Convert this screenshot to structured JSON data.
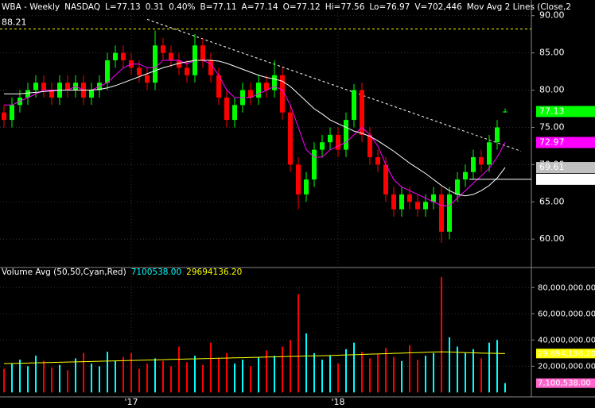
{
  "chart_data": [
    {
      "type": "candlestick",
      "header": [
        "WBA - Weekly",
        "NASDAQ",
        "L=77.13",
        "0.31",
        "0.40%",
        "B=77.11",
        "A=77.14",
        "O=77.12",
        "Hi=77.56",
        "Lo=76.97",
        "V=702,446",
        "Mov Avg 2 Lines (Close,2"
      ],
      "categories": [
        null,
        null,
        null,
        null,
        null,
        null,
        null,
        null,
        null,
        null,
        null,
        null,
        null,
        null,
        null,
        null,
        "'17",
        null,
        null,
        null,
        null,
        null,
        null,
        null,
        null,
        null,
        null,
        null,
        null,
        null,
        null,
        null,
        null,
        null,
        null,
        null,
        null,
        null,
        null,
        null,
        null,
        null,
        "'18",
        null,
        null,
        null,
        null,
        null,
        null,
        null,
        null,
        null,
        null,
        null,
        null,
        null,
        null,
        null,
        null,
        null,
        null,
        null,
        null,
        null
      ],
      "open": [
        77,
        76,
        78,
        79,
        80,
        81,
        80,
        79,
        81,
        80,
        81,
        79,
        80,
        81,
        84,
        85,
        84,
        83,
        82,
        81,
        86,
        85,
        84,
        83,
        82,
        86,
        84,
        82,
        79,
        76,
        78,
        80,
        79,
        81,
        80,
        82,
        77,
        70,
        66,
        68,
        72,
        73,
        74,
        72,
        76,
        80,
        74,
        71,
        70,
        66,
        64,
        66,
        65,
        64,
        65,
        66,
        61,
        66,
        68,
        69,
        71,
        70,
        73,
        77.12
      ],
      "high": [
        78,
        79,
        80,
        81,
        82,
        82,
        81,
        82,
        82,
        82,
        82,
        81,
        82,
        85,
        86,
        86,
        85,
        84,
        83,
        88,
        87,
        86,
        85,
        84,
        87.5,
        87,
        85,
        83,
        80,
        79,
        81,
        81,
        82,
        82,
        84,
        83,
        78,
        71,
        69,
        73,
        74,
        75,
        75,
        77,
        80.8,
        81,
        75,
        72,
        71,
        67,
        67,
        67,
        66,
        66,
        67,
        67,
        67,
        69,
        70,
        72,
        72,
        74,
        76,
        77.56
      ],
      "low": [
        75,
        75,
        77,
        78,
        79,
        79,
        78,
        78,
        79,
        79,
        78,
        78,
        79,
        80,
        83,
        83,
        82,
        81,
        80,
        80,
        84,
        83,
        82,
        81,
        81,
        83,
        81,
        78,
        75,
        75,
        77,
        78,
        78,
        79,
        79,
        76,
        69,
        64,
        65,
        67,
        71,
        72,
        71,
        71,
        75,
        73,
        70,
        69,
        65,
        63,
        63,
        64,
        63,
        63,
        64,
        59.5,
        60,
        65,
        67,
        68,
        69,
        69,
        72,
        76.97
      ],
      "close": [
        76,
        78,
        79,
        80,
        81,
        80,
        79,
        81,
        80,
        81,
        79,
        80,
        81,
        84,
        85,
        84,
        83,
        82,
        81,
        86,
        85,
        84,
        83,
        82,
        86,
        84,
        82,
        79,
        76,
        78,
        80,
        79,
        81,
        80,
        82,
        77,
        70,
        66,
        68,
        72,
        73,
        74,
        72,
        76,
        80,
        74,
        71,
        70,
        66,
        64,
        66,
        65,
        64,
        65,
        66,
        61,
        66,
        68,
        69,
        71,
        70,
        73,
        75,
        77.13
      ],
      "up_color": "#00ff00",
      "down_color": "#ff0000",
      "series": [
        {
          "color": "#ff00ff",
          "values": [
            78,
            78,
            78.5,
            79,
            79.5,
            80,
            80,
            80,
            80,
            80.5,
            80,
            80,
            80.5,
            81,
            82,
            83,
            83.5,
            83.5,
            83,
            83,
            84,
            84,
            84,
            83.5,
            84,
            84,
            83.5,
            82,
            80,
            79,
            79,
            79,
            79.5,
            80,
            80.5,
            80,
            78,
            75,
            72,
            71,
            71,
            72,
            72.5,
            73,
            74,
            75,
            74,
            72.5,
            70,
            68,
            67,
            66.5,
            66,
            65.5,
            65,
            64.5,
            64.5,
            65.5,
            66.5,
            67.5,
            68.5,
            69.5,
            71,
            72.97
          ]
        },
        {
          "color": "#ffffff",
          "values": [
            79.5,
            79.5,
            79.5,
            79.6,
            79.7,
            79.8,
            79.9,
            80,
            80,
            80,
            80,
            80,
            80.1,
            80.3,
            80.6,
            81,
            81.4,
            81.8,
            82.2,
            82.6,
            83,
            83.3,
            83.6,
            83.8,
            84,
            84,
            84,
            83.9,
            83.6,
            83.2,
            82.8,
            82.4,
            82,
            81.7,
            81.5,
            81.2,
            80.5,
            79.5,
            78.5,
            77.5,
            76.8,
            76,
            75.5,
            75,
            74.5,
            74.2,
            73.8,
            73.2,
            72.5,
            71.8,
            71,
            70.2,
            69.5,
            68.8,
            68,
            67.2,
            66.5,
            66,
            65.8,
            66,
            66.5,
            67.2,
            68.2,
            69.61
          ]
        }
      ],
      "hline": {
        "value": 88.21,
        "label": "88.21",
        "color": "#ffff00"
      },
      "trendline": {
        "from": {
          "index": 18,
          "value": 89.5
        },
        "to": {
          "index": 65,
          "value": 71.8
        },
        "color": "#ffffff"
      },
      "price_labels": [
        {
          "value": 77.13,
          "color": "#00ff00"
        },
        {
          "value": 72.97,
          "color": "#ff00ff"
        },
        {
          "value": 69.61,
          "color": "#c0c0c0"
        },
        {
          "value": 68.03,
          "color": "#ffffff"
        }
      ],
      "ylim": [
        56.4,
        92.1
      ],
      "yticks": [
        {
          "value": 60,
          "label": "60.00"
        },
        {
          "value": 65,
          "label": "65.00"
        },
        {
          "value": 70,
          "label": "70.00"
        },
        {
          "value": 75,
          "label": "75.00"
        },
        {
          "value": 80,
          "label": "80.00"
        },
        {
          "value": 85,
          "label": "85.00"
        },
        {
          "value": 90,
          "label": "90.00"
        }
      ],
      "grid": true
    },
    {
      "type": "bar",
      "header": [
        "Volume Avg (50,50,Cyan,Red)",
        "7100538.00",
        "29694136.20"
      ],
      "values": [
        18000000,
        22000000,
        25000000,
        20000000,
        28000000,
        24000000,
        19000000,
        21000000,
        17000000,
        26000000,
        30000000,
        22000000,
        20000000,
        31000000,
        24000000,
        27000000,
        30000000,
        18000000,
        22000000,
        26000000,
        24000000,
        20000000,
        35000000,
        23000000,
        28000000,
        21000000,
        38000000,
        26000000,
        30000000,
        22000000,
        25000000,
        20000000,
        27000000,
        32000000,
        28000000,
        35000000,
        40000000,
        75000000,
        45000000,
        30000000,
        25000000,
        28000000,
        22000000,
        33000000,
        38000000,
        31000000,
        26000000,
        29000000,
        34000000,
        27000000,
        24000000,
        36000000,
        25000000,
        28000000,
        30000000,
        88000000,
        42000000,
        35000000,
        30000000,
        33000000,
        26000000,
        38000000,
        40000000,
        7100538
      ],
      "up_color": "#00ffff",
      "down_color": "#ff0000",
      "series": [
        {
          "color": "#ffff00",
          "values": [
            22000000,
            22100000,
            22300000,
            22400000,
            22600000,
            22700000,
            22900000,
            23000000,
            23200000,
            23300000,
            23500000,
            23600000,
            23800000,
            23900000,
            24100000,
            24200000,
            24400000,
            24500000,
            24700000,
            24800000,
            25000000,
            25200000,
            25300000,
            25500000,
            25600000,
            25800000,
            25900000,
            26100000,
            26200000,
            26400000,
            26500000,
            26700000,
            26800000,
            27000000,
            27100000,
            27300000,
            27500000,
            27600000,
            27800000,
            27900000,
            28000000,
            28200000,
            28400000,
            28600000,
            28800000,
            29000000,
            29200000,
            29400000,
            29600000,
            29800000,
            30000000,
            30200000,
            30400000,
            30600000,
            30800000,
            31000000,
            30800000,
            30600000,
            30400000,
            30200000,
            30000000,
            29900000,
            29800000,
            29694136.2
          ]
        }
      ],
      "volume_labels": [
        {
          "value": 29694136.2,
          "label": "29,694,136.20",
          "color": "#ffff00"
        },
        {
          "value": 7100538,
          "label": "7,100,538.00",
          "color": "#ff66cc"
        }
      ],
      "ylim": [
        -3400000,
        93500000
      ],
      "yticks": [
        {
          "value": 20000000,
          "label": "20,000,000.00"
        },
        {
          "value": 40000000,
          "label": "40,000,000.00"
        },
        {
          "value": 60000000,
          "label": "60,000,000.00"
        },
        {
          "value": 80000000,
          "label": "80,000,000.00"
        }
      ],
      "grid": true
    }
  ]
}
